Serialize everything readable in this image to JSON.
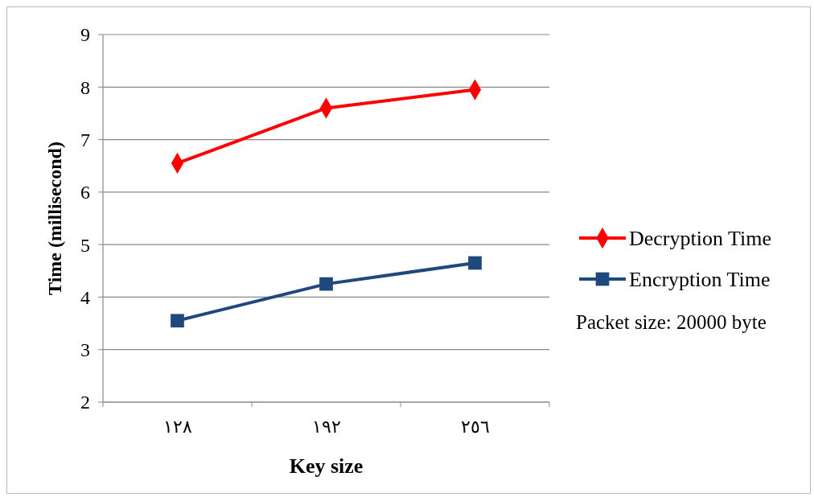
{
  "chart_data": {
    "type": "line",
    "xlabel": "Key size",
    "ylabel": "Time (millisecond)",
    "categories": [
      "١٢٨",
      "١٩٢",
      "٢٥٦"
    ],
    "series": [
      {
        "name": "Decryption Time",
        "color": "#ff0000",
        "values": [
          6.55,
          7.6,
          7.95
        ],
        "marker": "diamond"
      },
      {
        "name": "Encryption Time",
        "color": "#1f497d",
        "values": [
          3.55,
          4.25,
          4.65
        ],
        "marker": "square"
      }
    ],
    "ylim": [
      2,
      9
    ],
    "yticks": [
      2,
      3,
      4,
      5,
      6,
      7,
      8,
      9
    ],
    "grid": "y",
    "legend": "right",
    "annotations": [
      "Packet size: 20000 byte"
    ]
  }
}
